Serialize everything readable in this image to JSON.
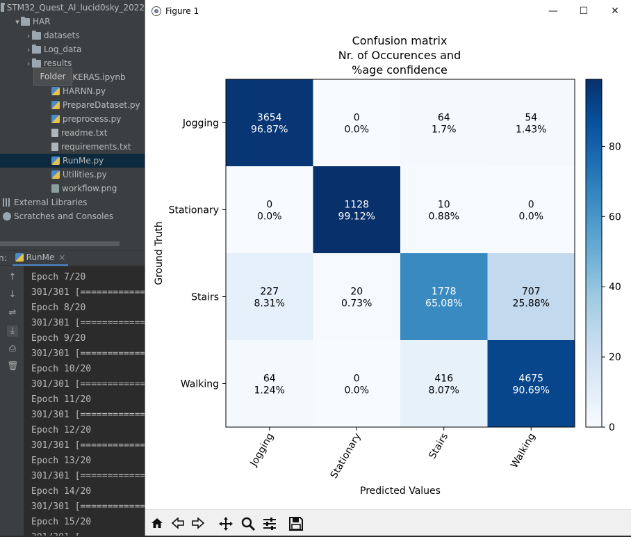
{
  "ide": {
    "project_tree": [
      {
        "label": "STM32_Quest_AI_lucid0sky_2022",
        "indent": 0,
        "kind": "folder",
        "chevron": ""
      },
      {
        "label": "HAR",
        "indent": 1,
        "kind": "folder",
        "chevron": "▾"
      },
      {
        "label": "datasets",
        "indent": 2,
        "kind": "folder",
        "chevron": "›"
      },
      {
        "label": "Log_data",
        "indent": 2,
        "kind": "folder",
        "chevron": "›"
      },
      {
        "label": "results",
        "indent": 2,
        "kind": "folder",
        "chevron": "›"
      },
      {
        "label": "R_KERAS.ipynb",
        "indent": 3,
        "kind": "py",
        "chevron": ""
      },
      {
        "label": "HARNN.py",
        "indent": 3,
        "kind": "py",
        "chevron": ""
      },
      {
        "label": "PrepareDataset.py",
        "indent": 3,
        "kind": "py",
        "chevron": ""
      },
      {
        "label": "preprocess.py",
        "indent": 3,
        "kind": "py",
        "chevron": ""
      },
      {
        "label": "readme.txt",
        "indent": 3,
        "kind": "txt",
        "chevron": ""
      },
      {
        "label": "requirements.txt",
        "indent": 3,
        "kind": "txt",
        "chevron": ""
      },
      {
        "label": "RunMe.py",
        "indent": 3,
        "kind": "py",
        "chevron": "",
        "selected": true
      },
      {
        "label": "Utilities.py",
        "indent": 3,
        "kind": "py",
        "chevron": ""
      },
      {
        "label": "workflow.png",
        "indent": 3,
        "kind": "img",
        "chevron": ""
      },
      {
        "label": "External Libraries",
        "indent": 0,
        "kind": "lib",
        "chevron": ""
      },
      {
        "label": "Scratches and Consoles",
        "indent": 0,
        "kind": "scr",
        "chevron": ""
      }
    ],
    "tooltip": "Folder",
    "run_prefix": "n:",
    "run_tab_label": "RunMe",
    "run_tab_close": "×",
    "console_lines": [
      "Epoch 7/20",
      "301/301 [============",
      "Epoch 8/20",
      "301/301 [============",
      "Epoch 9/20",
      "301/301 [============",
      "Epoch 10/20",
      "301/301 [============",
      "Epoch 11/20",
      "301/301 [============",
      "Epoch 12/20",
      "301/301 [============",
      "Epoch 13/20",
      "301/301 [============",
      "Epoch 14/20",
      "301/301 [============",
      "Epoch 15/20",
      "301/301 ["
    ]
  },
  "figure_window": {
    "title": "Figure 1",
    "minimize": "—",
    "maximize": "☐",
    "close": "✕"
  },
  "toolbar_icons": [
    "home-icon",
    "back-icon",
    "forward-icon",
    "pan-icon",
    "zoom-icon",
    "configure-icon",
    "save-icon"
  ],
  "chart_data": {
    "type": "heatmap",
    "title_lines": [
      "Confusion matrix",
      "Nr. of Occurences and",
      "%age confidence"
    ],
    "xlabel": "Predicted Values",
    "ylabel": "Ground Truth",
    "x_categories": [
      "Jogging",
      "Stationary",
      "Stairs",
      "Walking"
    ],
    "y_categories": [
      "Jogging",
      "Stationary",
      "Stairs",
      "Walking"
    ],
    "counts": [
      [
        3654,
        0,
        64,
        54
      ],
      [
        0,
        1128,
        10,
        0
      ],
      [
        227,
        20,
        1778,
        707
      ],
      [
        64,
        0,
        416,
        4675
      ]
    ],
    "percent_labels": [
      [
        "96.87%",
        "0.0%",
        "1.7%",
        "1.43%"
      ],
      [
        "0.0%",
        "99.12%",
        "0.88%",
        "0.0%"
      ],
      [
        "8.31%",
        "0.73%",
        "65.08%",
        "25.88%"
      ],
      [
        "1.24%",
        "0.0%",
        "8.07%",
        "90.69%"
      ]
    ],
    "percent_values": [
      [
        96.87,
        0.0,
        1.7,
        1.43
      ],
      [
        0.0,
        99.12,
        0.88,
        0.0
      ],
      [
        8.31,
        0.73,
        65.08,
        25.88
      ],
      [
        1.24,
        0.0,
        8.07,
        90.69
      ]
    ],
    "colormap": "Blues",
    "colorbar_ticks": [
      0,
      20,
      40,
      60,
      80
    ],
    "colorbar_range": [
      0,
      99.12
    ]
  }
}
